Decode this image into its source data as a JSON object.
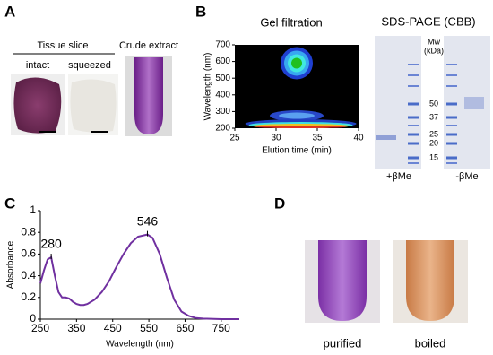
{
  "panel_labels": [
    "A",
    "B",
    "C",
    "D"
  ],
  "tissue": {
    "title": "Tissue slice",
    "intact": "intact",
    "squeezed": "squeezed",
    "crude": "Crude extract"
  },
  "sds_page": {
    "title": "SDS-PAGE (CBB)",
    "mw": "Mw",
    "unit": "(kDa)",
    "markers": [
      50,
      37,
      25,
      20,
      15
    ],
    "lanes": [
      "+βMe",
      "-βMe"
    ]
  },
  "photos": {
    "purified": "purified",
    "boiled": "boiled"
  },
  "chart_data": [
    {
      "type": "contour",
      "title": "Gel filtration",
      "x_label": "Elution time (min)",
      "y_label": "Wavelength (nm)",
      "x": [
        32.5,
        32.5,
        33
      ],
      "values": [
        590,
        275,
        207
      ],
      "xlim": [
        25,
        40
      ],
      "ylim": [
        200,
        700
      ],
      "xticks": [
        25,
        30,
        35,
        40
      ],
      "yticks": [
        200,
        300,
        400,
        500,
        600,
        700
      ]
    },
    {
      "type": "line",
      "x_label": "Wavelength (nm)",
      "y_label": "Absorbance",
      "color": "#7030a0",
      "x": [
        250,
        260,
        270,
        280,
        290,
        300,
        310,
        320,
        330,
        340,
        350,
        360,
        370,
        380,
        400,
        420,
        440,
        460,
        480,
        500,
        520,
        546,
        560,
        580,
        600,
        620,
        640,
        660,
        680,
        700,
        750,
        800
      ],
      "values": [
        0.33,
        0.45,
        0.55,
        0.57,
        0.4,
        0.25,
        0.2,
        0.2,
        0.19,
        0.16,
        0.14,
        0.13,
        0.13,
        0.14,
        0.18,
        0.25,
        0.35,
        0.48,
        0.6,
        0.7,
        0.76,
        0.78,
        0.75,
        0.6,
        0.38,
        0.18,
        0.07,
        0.03,
        0.01,
        0.005,
        0,
        0
      ],
      "annotations": [
        {
          "x": 280,
          "y": 0.57,
          "text": "280"
        },
        {
          "x": 546,
          "y": 0.78,
          "text": "546"
        }
      ],
      "xlim": [
        250,
        800
      ],
      "ylim": [
        0,
        1
      ],
      "xticks": [
        250,
        350,
        450,
        550,
        650,
        750
      ],
      "yticks": [
        0,
        0.2,
        0.4,
        0.6,
        0.8,
        1
      ]
    }
  ]
}
